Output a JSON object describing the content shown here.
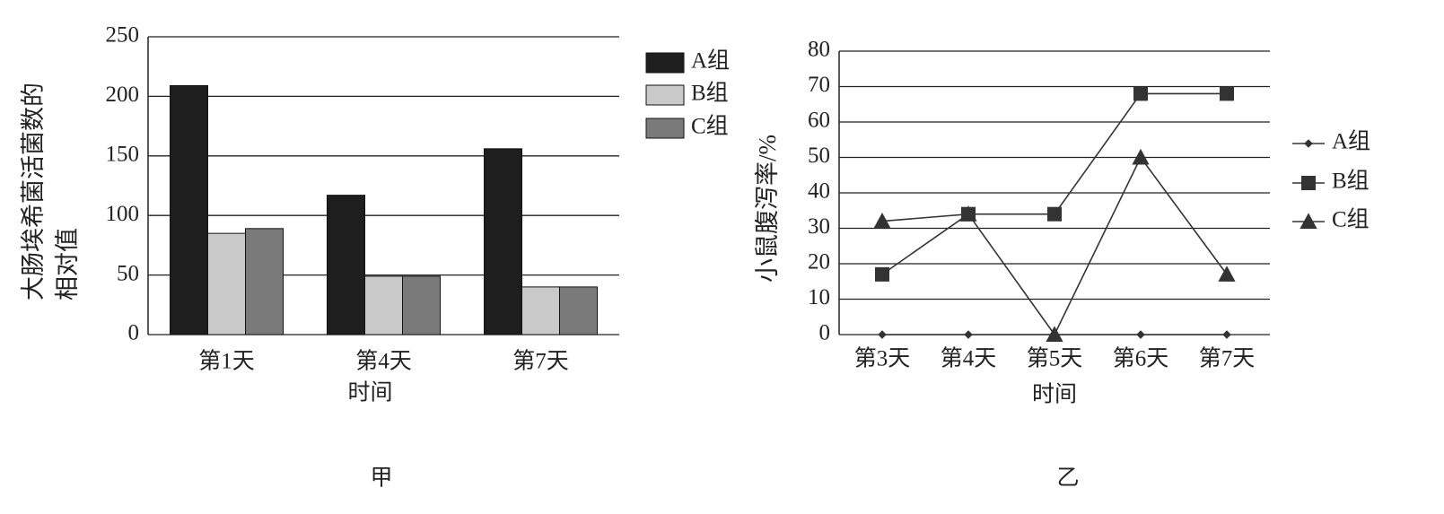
{
  "chart_data": [
    {
      "type": "bar",
      "ylabel": [
        "大肠埃希菌活菌数的",
        "相对值"
      ],
      "xlabel": "时间",
      "caption": "甲",
      "categories": [
        "第1天",
        "第4天",
        "第7天"
      ],
      "series": [
        {
          "name": "A组",
          "color": "#1e1e1e",
          "values": [
            209,
            117,
            156
          ]
        },
        {
          "name": "B组",
          "color": "#c9c9c9",
          "values": [
            85,
            49,
            40
          ]
        },
        {
          "name": "C组",
          "color": "#7a7a7a",
          "values": [
            89,
            49,
            40
          ]
        }
      ],
      "ylim": [
        0,
        250
      ],
      "yticks": [
        0,
        50,
        100,
        150,
        200,
        250
      ],
      "grid": true,
      "legend": "right"
    },
    {
      "type": "line",
      "ylabel": [
        "小鼠腹泻率/%"
      ],
      "xlabel": "时间",
      "caption": "乙",
      "categories": [
        "第3天",
        "第4天",
        "第5天",
        "第6天",
        "第7天"
      ],
      "series": [
        {
          "name": "A组",
          "color": "#333333",
          "marker": "diamond",
          "values": [
            0,
            0,
            0,
            0,
            0
          ]
        },
        {
          "name": "B组",
          "color": "#333333",
          "marker": "square",
          "values": [
            17,
            34,
            34,
            68,
            68
          ]
        },
        {
          "name": "C组",
          "color": "#333333",
          "marker": "triangle",
          "values": [
            32,
            34,
            0,
            50,
            17
          ]
        }
      ],
      "ylim": [
        0,
        80
      ],
      "yticks": [
        0,
        10,
        20,
        30,
        40,
        50,
        60,
        70,
        80
      ],
      "grid": true,
      "legend": "right"
    }
  ]
}
